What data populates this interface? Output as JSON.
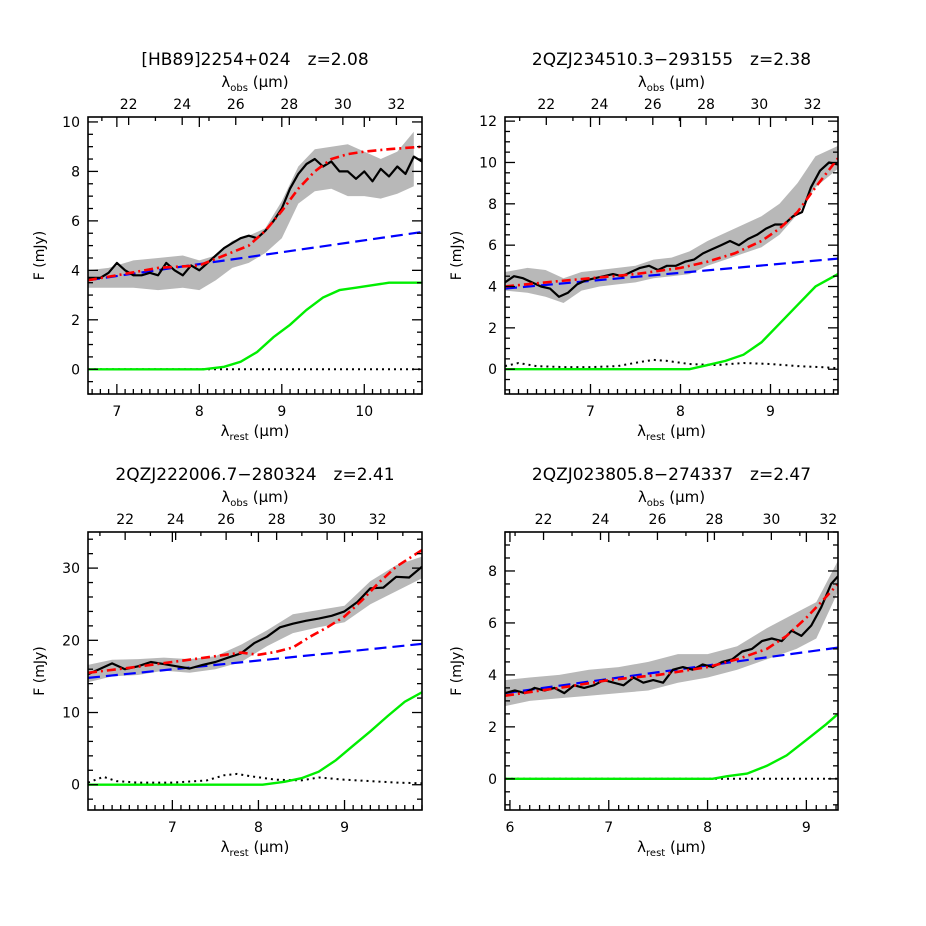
{
  "colors": {
    "spectrum": "#000000",
    "uncertainty": "#b8b8b8",
    "fit": "#ff0000",
    "continuum": "#0000ff",
    "silicate": "#00ee00",
    "pah": "#000000"
  },
  "chart_data": [
    {
      "type": "line",
      "title_name": "[HB89]2254+024",
      "title_z": "z=2.08",
      "xlabel": "λrest (μm)",
      "x2label": "λobs (μm)",
      "ylabel": "F (mJy)",
      "xlim": [
        6.65,
        10.7
      ],
      "ylim": [
        -1.0,
        10.2
      ],
      "xticks": [
        7,
        8,
        9,
        10
      ],
      "yticks": [
        0,
        2,
        4,
        6,
        8,
        10
      ],
      "x2ticks": [
        22,
        24,
        26,
        28,
        30,
        32
      ],
      "redshift": 2.08,
      "series": [
        {
          "role": "band",
          "x": [
            6.65,
            6.9,
            7.2,
            7.5,
            7.8,
            8.0,
            8.2,
            8.4,
            8.6,
            8.8,
            9.0,
            9.2,
            9.4,
            9.6,
            9.8,
            10.0,
            10.2,
            10.4,
            10.6
          ],
          "low": [
            3.3,
            3.3,
            3.3,
            3.2,
            3.3,
            3.2,
            3.6,
            4.1,
            4.3,
            4.7,
            5.3,
            6.7,
            7.2,
            7.3,
            7.0,
            7.0,
            6.9,
            7.1,
            7.4
          ],
          "high": [
            4.0,
            4.1,
            4.4,
            4.5,
            4.6,
            4.4,
            4.6,
            5.2,
            5.4,
            5.7,
            6.8,
            8.2,
            8.9,
            9.0,
            9.1,
            8.8,
            8.5,
            8.8,
            9.6
          ]
        },
        {
          "role": "spectrum",
          "x": [
            6.65,
            6.8,
            6.9,
            7.0,
            7.1,
            7.2,
            7.3,
            7.4,
            7.5,
            7.6,
            7.7,
            7.8,
            7.9,
            8.0,
            8.1,
            8.2,
            8.3,
            8.4,
            8.5,
            8.6,
            8.7,
            8.8,
            8.9,
            9.0,
            9.1,
            9.2,
            9.3,
            9.4,
            9.5,
            9.6,
            9.7,
            9.8,
            9.9,
            10.0,
            10.1,
            10.2,
            10.3,
            10.4,
            10.5,
            10.6,
            10.7
          ],
          "y": [
            3.7,
            3.7,
            3.9,
            4.3,
            4.0,
            3.8,
            3.8,
            3.9,
            3.8,
            4.3,
            4.0,
            3.8,
            4.2,
            4.0,
            4.3,
            4.6,
            4.9,
            5.1,
            5.3,
            5.4,
            5.3,
            5.6,
            6.0,
            6.5,
            7.3,
            7.9,
            8.3,
            8.5,
            8.2,
            8.4,
            8.0,
            8.0,
            7.7,
            8.0,
            7.6,
            8.1,
            7.8,
            8.2,
            7.9,
            8.6,
            8.4
          ]
        },
        {
          "role": "fit",
          "x": [
            6.65,
            7.0,
            7.5,
            8.0,
            8.3,
            8.6,
            8.8,
            9.0,
            9.2,
            9.4,
            9.6,
            9.8,
            10.0,
            10.3,
            10.7
          ],
          "y": [
            3.6,
            3.8,
            4.1,
            4.2,
            4.6,
            5.0,
            5.6,
            6.4,
            7.3,
            8.0,
            8.5,
            8.7,
            8.8,
            8.9,
            9.0
          ]
        },
        {
          "role": "continuum",
          "x": [
            6.65,
            10.7
          ],
          "y": [
            3.6,
            5.55
          ]
        },
        {
          "role": "silicate",
          "x": [
            6.65,
            8.05,
            8.3,
            8.5,
            8.7,
            8.9,
            9.1,
            9.3,
            9.5,
            9.7,
            9.9,
            10.1,
            10.3,
            10.5,
            10.7
          ],
          "y": [
            0,
            0,
            0.1,
            0.3,
            0.7,
            1.3,
            1.8,
            2.4,
            2.9,
            3.2,
            3.3,
            3.4,
            3.5,
            3.5,
            3.5
          ]
        },
        {
          "role": "pah",
          "x": [
            6.65,
            10.7
          ],
          "y": [
            0,
            0
          ]
        }
      ]
    },
    {
      "type": "line",
      "title_name": "2QZJ234510.3−293155",
      "title_z": "z=2.38",
      "xlabel": "λrest (μm)",
      "x2label": "λobs (μm)",
      "ylabel": "F (mJy)",
      "xlim": [
        6.05,
        9.75
      ],
      "ylim": [
        -1.2,
        12.2
      ],
      "xticks": [
        7,
        8,
        9
      ],
      "yticks": [
        0,
        2,
        4,
        6,
        8,
        10,
        12
      ],
      "x2ticks": [
        22,
        24,
        26,
        28,
        30,
        32
      ],
      "redshift": 2.38,
      "series": [
        {
          "role": "band",
          "x": [
            6.05,
            6.3,
            6.5,
            6.7,
            6.9,
            7.1,
            7.3,
            7.5,
            7.7,
            7.9,
            8.1,
            8.3,
            8.5,
            8.7,
            8.9,
            9.1,
            9.3,
            9.5,
            9.75
          ],
          "low": [
            3.8,
            3.7,
            3.5,
            3.2,
            3.8,
            4.0,
            4.1,
            4.2,
            4.4,
            4.5,
            4.6,
            5.0,
            5.3,
            5.6,
            5.9,
            6.5,
            7.5,
            8.8,
            9.7
          ],
          "high": [
            4.7,
            4.9,
            4.8,
            4.4,
            4.7,
            4.8,
            4.9,
            5.0,
            5.3,
            5.4,
            5.7,
            6.2,
            6.6,
            7.0,
            7.4,
            8.0,
            9.0,
            10.3,
            10.8
          ]
        },
        {
          "role": "spectrum",
          "x": [
            6.05,
            6.15,
            6.25,
            6.35,
            6.45,
            6.55,
            6.65,
            6.75,
            6.85,
            6.95,
            7.05,
            7.15,
            7.25,
            7.35,
            7.45,
            7.55,
            7.65,
            7.75,
            7.85,
            7.95,
            8.05,
            8.15,
            8.25,
            8.35,
            8.45,
            8.55,
            8.65,
            8.75,
            8.85,
            8.95,
            9.05,
            9.15,
            9.25,
            9.35,
            9.45,
            9.55,
            9.65,
            9.75
          ],
          "y": [
            4.2,
            4.5,
            4.4,
            4.2,
            4.0,
            3.9,
            3.5,
            3.7,
            4.1,
            4.3,
            4.4,
            4.5,
            4.6,
            4.5,
            4.7,
            4.9,
            5.0,
            4.8,
            5.0,
            5.0,
            5.2,
            5.3,
            5.6,
            5.8,
            6.0,
            6.2,
            6.0,
            6.3,
            6.5,
            6.8,
            7.0,
            7.0,
            7.4,
            7.6,
            8.8,
            9.6,
            10.0,
            9.9
          ]
        },
        {
          "role": "fit",
          "x": [
            6.05,
            6.5,
            7.0,
            7.5,
            8.0,
            8.3,
            8.6,
            8.9,
            9.1,
            9.3,
            9.5,
            9.75
          ],
          "y": [
            4.0,
            4.2,
            4.4,
            4.6,
            4.9,
            5.2,
            5.6,
            6.2,
            6.8,
            7.6,
            8.8,
            10.2
          ]
        },
        {
          "role": "continuum",
          "x": [
            6.05,
            9.75
          ],
          "y": [
            3.9,
            5.35
          ]
        },
        {
          "role": "silicate",
          "x": [
            6.05,
            8.1,
            8.3,
            8.5,
            8.7,
            8.9,
            9.1,
            9.3,
            9.5,
            9.75
          ],
          "y": [
            0,
            0,
            0.2,
            0.4,
            0.7,
            1.3,
            2.2,
            3.1,
            4.0,
            4.6
          ]
        },
        {
          "role": "pah",
          "x": [
            6.05,
            6.2,
            6.4,
            6.7,
            7.0,
            7.3,
            7.55,
            7.7,
            7.85,
            8.1,
            8.4,
            8.7,
            9.0,
            9.3,
            9.55,
            9.75
          ],
          "y": [
            0.15,
            0.3,
            0.15,
            0.1,
            0.1,
            0.15,
            0.35,
            0.45,
            0.4,
            0.25,
            0.2,
            0.3,
            0.25,
            0.15,
            0.1,
            0.05
          ]
        }
      ]
    },
    {
      "type": "line",
      "title_name": "2QZJ222006.7−280324",
      "title_z": "z=2.41",
      "xlabel": "λrest (μm)",
      "x2label": "λobs (μm)",
      "ylabel": "F (mJy)",
      "xlim": [
        6.02,
        9.9
      ],
      "ylim": [
        -3.5,
        35.0
      ],
      "xticks": [
        7,
        8,
        9
      ],
      "yticks": [
        0,
        10,
        20,
        30
      ],
      "x2ticks": [
        22,
        24,
        26,
        28,
        30,
        32
      ],
      "redshift": 2.41,
      "series": [
        {
          "role": "band",
          "x": [
            6.02,
            6.3,
            6.6,
            6.9,
            7.2,
            7.5,
            7.8,
            8.1,
            8.4,
            8.7,
            9.0,
            9.3,
            9.6,
            9.9
          ],
          "low": [
            14.2,
            15.0,
            15.2,
            15.8,
            15.5,
            16.0,
            17.0,
            19.2,
            21.0,
            21.8,
            22.5,
            25.0,
            26.8,
            28.6
          ],
          "high": [
            16.6,
            17.3,
            17.4,
            17.6,
            17.4,
            17.8,
            19.4,
            21.4,
            23.6,
            24.2,
            24.8,
            28.2,
            30.4,
            31.6
          ]
        },
        {
          "role": "spectrum",
          "x": [
            6.02,
            6.15,
            6.3,
            6.45,
            6.6,
            6.75,
            6.9,
            7.05,
            7.2,
            7.35,
            7.5,
            7.65,
            7.8,
            7.95,
            8.1,
            8.25,
            8.4,
            8.55,
            8.7,
            8.85,
            9.0,
            9.15,
            9.3,
            9.45,
            9.6,
            9.75,
            9.9
          ],
          "y": [
            15.3,
            16.0,
            16.8,
            16.0,
            16.4,
            17.0,
            16.7,
            16.4,
            16.1,
            16.6,
            17.0,
            17.6,
            18.2,
            19.6,
            20.5,
            21.8,
            22.3,
            22.7,
            23.0,
            23.4,
            24.0,
            25.3,
            27.2,
            27.3,
            28.8,
            28.7,
            30.2
          ]
        },
        {
          "role": "fit",
          "x": [
            6.02,
            6.5,
            7.0,
            7.5,
            7.8,
            8.0,
            8.2,
            8.4,
            8.6,
            8.8,
            9.0,
            9.2,
            9.4,
            9.6,
            9.9
          ],
          "y": [
            15.5,
            16.2,
            17.0,
            17.8,
            18.3,
            18.0,
            18.4,
            19.0,
            20.5,
            21.8,
            23.3,
            25.5,
            28.0,
            30.2,
            32.5
          ]
        },
        {
          "role": "continuum",
          "x": [
            6.02,
            9.9
          ],
          "y": [
            14.8,
            19.5
          ]
        },
        {
          "role": "silicate",
          "x": [
            6.02,
            8.05,
            8.3,
            8.5,
            8.7,
            8.9,
            9.1,
            9.3,
            9.5,
            9.7,
            9.9
          ],
          "y": [
            0,
            0,
            0.4,
            0.9,
            1.8,
            3.4,
            5.4,
            7.4,
            9.5,
            11.5,
            12.8
          ]
        },
        {
          "role": "pah",
          "x": [
            6.02,
            6.2,
            6.35,
            6.6,
            7.0,
            7.4,
            7.6,
            7.75,
            7.9,
            8.2,
            8.5,
            8.7,
            9.0,
            9.3,
            9.6,
            9.9
          ],
          "y": [
            0.3,
            1.1,
            0.5,
            0.3,
            0.3,
            0.6,
            1.3,
            1.5,
            1.2,
            0.7,
            0.6,
            1.0,
            0.7,
            0.5,
            0.3,
            0.2
          ]
        }
      ]
    },
    {
      "type": "line",
      "title_name": "2QZJ023805.8−274337",
      "title_z": "z=2.47",
      "xlabel": "λrest (μm)",
      "x2label": "λobs (μm)",
      "ylabel": "F (mJy)",
      "xlim": [
        5.95,
        9.32
      ],
      "ylim": [
        -1.2,
        9.5
      ],
      "xticks": [
        6,
        7,
        8,
        9
      ],
      "yticks": [
        0,
        2,
        4,
        6,
        8
      ],
      "x2ticks": [
        22,
        24,
        26,
        28,
        30,
        32
      ],
      "redshift": 2.47,
      "series": [
        {
          "role": "band",
          "x": [
            5.95,
            6.2,
            6.5,
            6.8,
            7.1,
            7.4,
            7.7,
            8.0,
            8.3,
            8.6,
            8.9,
            9.1,
            9.32
          ],
          "low": [
            2.8,
            3.0,
            3.1,
            3.2,
            3.3,
            3.4,
            3.7,
            3.9,
            4.2,
            4.6,
            5.0,
            5.4,
            7.2
          ],
          "high": [
            3.8,
            3.9,
            4.0,
            4.2,
            4.3,
            4.5,
            4.8,
            4.8,
            5.1,
            5.8,
            6.4,
            6.8,
            8.4
          ]
        },
        {
          "role": "spectrum",
          "x": [
            5.95,
            6.05,
            6.15,
            6.25,
            6.35,
            6.45,
            6.55,
            6.65,
            6.75,
            6.85,
            6.95,
            7.05,
            7.15,
            7.25,
            7.35,
            7.45,
            7.55,
            7.65,
            7.75,
            7.85,
            7.95,
            8.05,
            8.15,
            8.25,
            8.35,
            8.45,
            8.55,
            8.65,
            8.75,
            8.85,
            8.95,
            9.05,
            9.15,
            9.25,
            9.32
          ],
          "y": [
            3.3,
            3.4,
            3.3,
            3.5,
            3.4,
            3.5,
            3.3,
            3.6,
            3.5,
            3.6,
            3.8,
            3.7,
            3.6,
            3.9,
            3.7,
            3.8,
            3.7,
            4.2,
            4.3,
            4.2,
            4.4,
            4.3,
            4.5,
            4.6,
            4.9,
            5.0,
            5.3,
            5.4,
            5.3,
            5.7,
            5.5,
            5.9,
            6.6,
            7.5,
            7.8
          ]
        },
        {
          "role": "fit",
          "x": [
            5.95,
            6.5,
            7.0,
            7.5,
            8.0,
            8.3,
            8.6,
            8.8,
            9.0,
            9.15,
            9.32
          ],
          "y": [
            3.2,
            3.5,
            3.8,
            4.0,
            4.3,
            4.6,
            5.0,
            5.5,
            6.2,
            6.8,
            7.5
          ]
        },
        {
          "role": "continuum",
          "x": [
            5.95,
            9.32
          ],
          "y": [
            3.3,
            5.05
          ]
        },
        {
          "role": "silicate",
          "x": [
            5.95,
            8.05,
            8.2,
            8.4,
            8.6,
            8.8,
            9.0,
            9.2,
            9.32
          ],
          "y": [
            0,
            0,
            0.1,
            0.2,
            0.5,
            0.9,
            1.5,
            2.1,
            2.5
          ]
        },
        {
          "role": "pah",
          "x": [
            5.95,
            9.32
          ],
          "y": [
            0,
            0
          ]
        }
      ]
    }
  ]
}
